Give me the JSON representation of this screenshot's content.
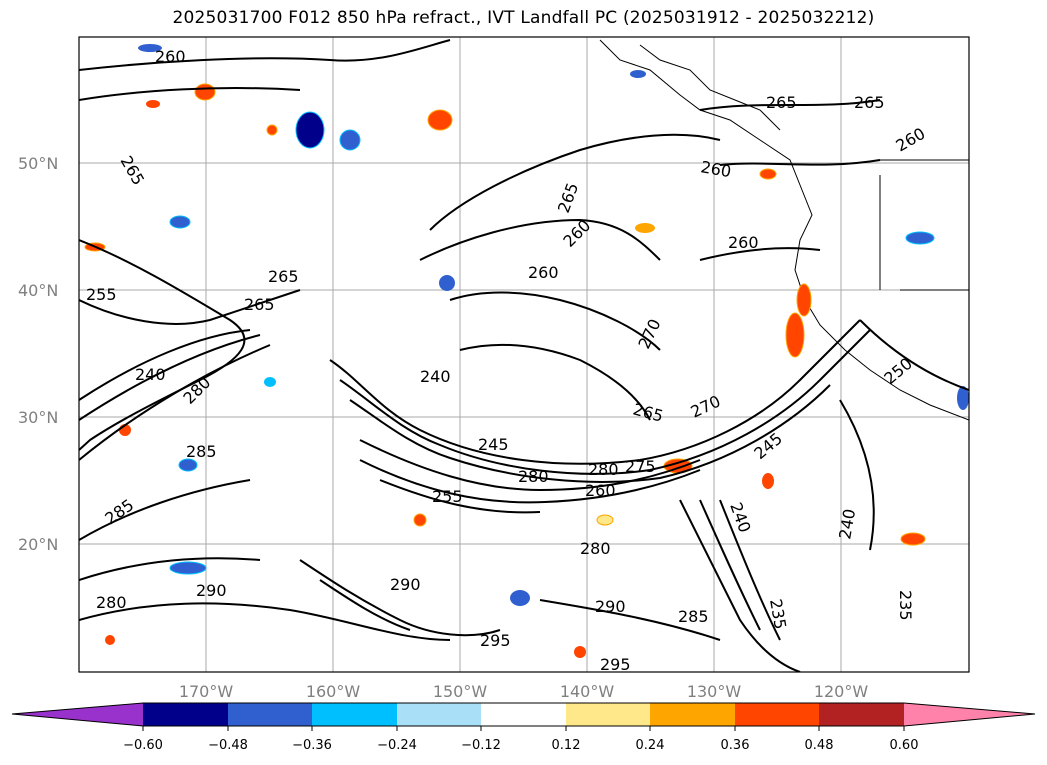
{
  "title": "2025031700 F012 850 hPa refract., IVT Landfall PC (2025031912 - 2025032212)",
  "map": {
    "lat_labels": [
      "50°N",
      "40°N",
      "30°N",
      "20°N"
    ],
    "lon_labels": [
      "170°W",
      "160°W",
      "150°W",
      "140°W",
      "130°W",
      "120°W"
    ],
    "contour_labels": [
      "260",
      "265",
      "255",
      "265",
      "240",
      "280",
      "265",
      "285",
      "260",
      "255",
      "280",
      "285",
      "290",
      "280",
      "290",
      "295",
      "290",
      "295",
      "280",
      "240",
      "245",
      "280",
      "275",
      "260",
      "270",
      "285",
      "235",
      "265",
      "265",
      "260",
      "260",
      "260",
      "265",
      "265",
      "240",
      "260",
      "270",
      "240",
      "235",
      "245",
      "250"
    ]
  },
  "colorbar": {
    "tick_labels": [
      "−0.60",
      "−0.48",
      "−0.36",
      "−0.24",
      "−0.12",
      "0.12",
      "0.24",
      "0.36",
      "0.48",
      "0.60"
    ],
    "colors": {
      "under": "#9932cc",
      "bins": [
        "#00008b",
        "#3060cf",
        "#00bfff",
        "#aadff8",
        "#ffffff",
        "#ffe88a",
        "#ffa500",
        "#ff4500",
        "#b22222"
      ],
      "over": "#ff82ab"
    }
  },
  "colors": {
    "contour": "#000000",
    "grid": "#999999",
    "coast": "#000000",
    "axis_label": "#808080"
  }
}
